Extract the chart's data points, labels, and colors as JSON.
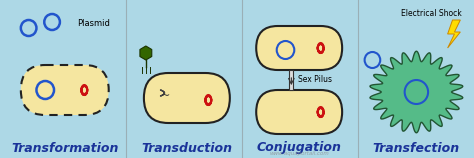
{
  "background_color": "#add8e6",
  "cell_fill": "#f5e6a0",
  "cell_edge": "#222222",
  "labels": [
    "Transformation",
    "Transduction",
    "Conjugation",
    "Transfection"
  ],
  "label_color": "#1a3399",
  "label_fontsize": 9,
  "plasmid_color": "#2255cc",
  "chromosome_color": "#cc1111",
  "virus_color": "#336600",
  "animal_cell_color": "#55bb88",
  "shock_color": "#ffcc00",
  "annotation_electrical": "Electrical Shock",
  "annotation_sex_pilus": "Sex Pilus",
  "annotation_plasmid": "Plasmid",
  "watermark": "www.aquaportail.com"
}
